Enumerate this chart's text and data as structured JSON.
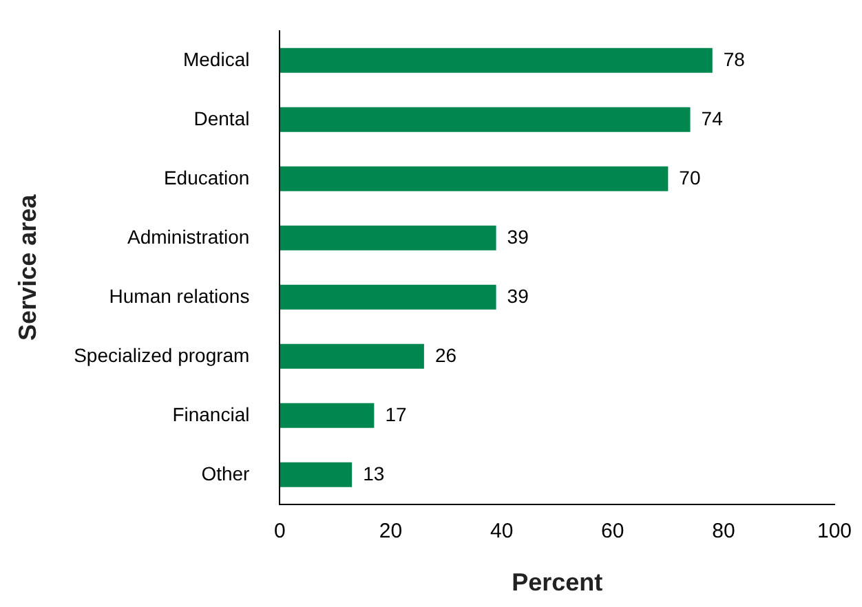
{
  "chart_data": {
    "type": "bar",
    "orientation": "horizontal",
    "xlabel": "Percent",
    "ylabel": "Service area",
    "categories": [
      "Medical",
      "Dental",
      "Education",
      "Administration",
      "Human relations",
      "Specialized program",
      "Financial",
      "Other"
    ],
    "values": [
      78,
      74,
      70,
      39,
      39,
      26,
      17,
      13
    ],
    "color": "#00874f",
    "xlim": [
      0,
      100
    ],
    "xticks": [
      0,
      20,
      40,
      60,
      80,
      100
    ],
    "grid": false,
    "data_labels": true
  }
}
